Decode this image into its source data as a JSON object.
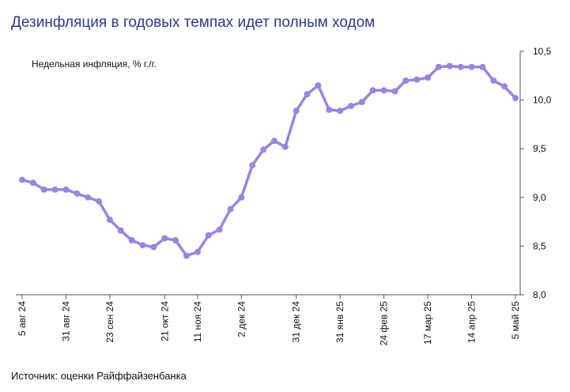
{
  "title": "Дезинфляция в годовых темпах идет полным ходом",
  "source": "Источник: оценки Райффайзенбанка",
  "colors": {
    "line": "#9a84e2",
    "title": "#2b3a8f",
    "axis": "#555555"
  },
  "chart_data": {
    "type": "line",
    "title": "Дезинфляция в годовых темпах идет полным ходом",
    "series": [
      {
        "name": "Недельная инфляция, % г./г.",
        "values": [
          9.18,
          9.15,
          9.08,
          9.08,
          9.08,
          9.04,
          9.0,
          8.96,
          8.77,
          8.66,
          8.56,
          8.51,
          8.49,
          8.58,
          8.56,
          8.4,
          8.44,
          8.61,
          8.67,
          8.88,
          9.0,
          9.33,
          9.49,
          9.58,
          9.52,
          9.89,
          10.06,
          10.15,
          9.9,
          9.89,
          9.94,
          9.98,
          10.1,
          10.1,
          10.09,
          10.2,
          10.21,
          10.23,
          10.34,
          10.35,
          10.34,
          10.34,
          10.34,
          10.2,
          10.14,
          10.02
        ]
      }
    ],
    "x_labels": [
      "5 авг 24",
      "31 авг 24",
      "23 сен 24",
      "21 окт 24",
      "11 ноя 24",
      "2 дек 24",
      "31 дек 24",
      "31 янв 25",
      "24 фев 25",
      "17 мар 25",
      "14 апр 25",
      "5 май 25"
    ],
    "x_label_positions": [
      0,
      4,
      8,
      13,
      16,
      20,
      25,
      29,
      33,
      37,
      41,
      45
    ],
    "y_ticks": [
      "8,0",
      "8,5",
      "9,0",
      "9,5",
      "10,0",
      "10,5"
    ],
    "ylim": [
      8.0,
      10.5
    ],
    "y_axis_side": "right",
    "legend": "Недельная инфляция, % г./г.",
    "legend_placement": "top-left",
    "grid": false
  }
}
